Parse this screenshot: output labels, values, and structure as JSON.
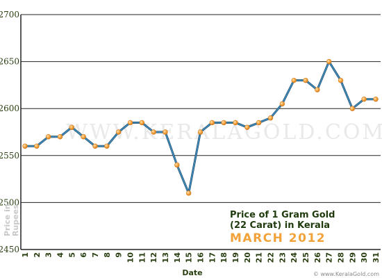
{
  "chart_data": {
    "type": "line",
    "title_line1": "Price of 1 Gram Gold",
    "title_line2": "(22 Carat) in Kerala",
    "subtitle": "MARCH 2012",
    "xlabel": "Date",
    "ylabel_line1": "Price in",
    "ylabel_line2": "Rupees",
    "watermark": "WWW.KERALAGOLD.COM",
    "footer": "© www.KeralaGold.com",
    "ylim": [
      2450,
      2700
    ],
    "yticks": [
      "2450",
      "2500",
      "2550",
      "2600",
      "2650",
      "2700"
    ],
    "x": [
      "1",
      "2",
      "3",
      "4",
      "5",
      "6",
      "7",
      "8",
      "9",
      "10",
      "11",
      "12",
      "13",
      "14",
      "15",
      "16",
      "17",
      "18",
      "19",
      "20",
      "21",
      "22",
      "23",
      "24",
      "25",
      "26",
      "27",
      "28",
      "29",
      "30",
      "31"
    ],
    "values": [
      2560,
      2560,
      2570,
      2570,
      2580,
      2570,
      2560,
      2560,
      2575,
      2585,
      2585,
      2575,
      2575,
      2540,
      2510,
      2575,
      2585,
      2585,
      2585,
      2580,
      2585,
      2590,
      2605,
      2630,
      2630,
      2620,
      2650,
      2630,
      2600,
      2610,
      2610
    ],
    "grid": true,
    "colors": {
      "line": "#3d89b8",
      "marker": "#f5a540",
      "marker_edge": "#d07a1c",
      "axis": "#222222",
      "grid": "#222222"
    }
  }
}
